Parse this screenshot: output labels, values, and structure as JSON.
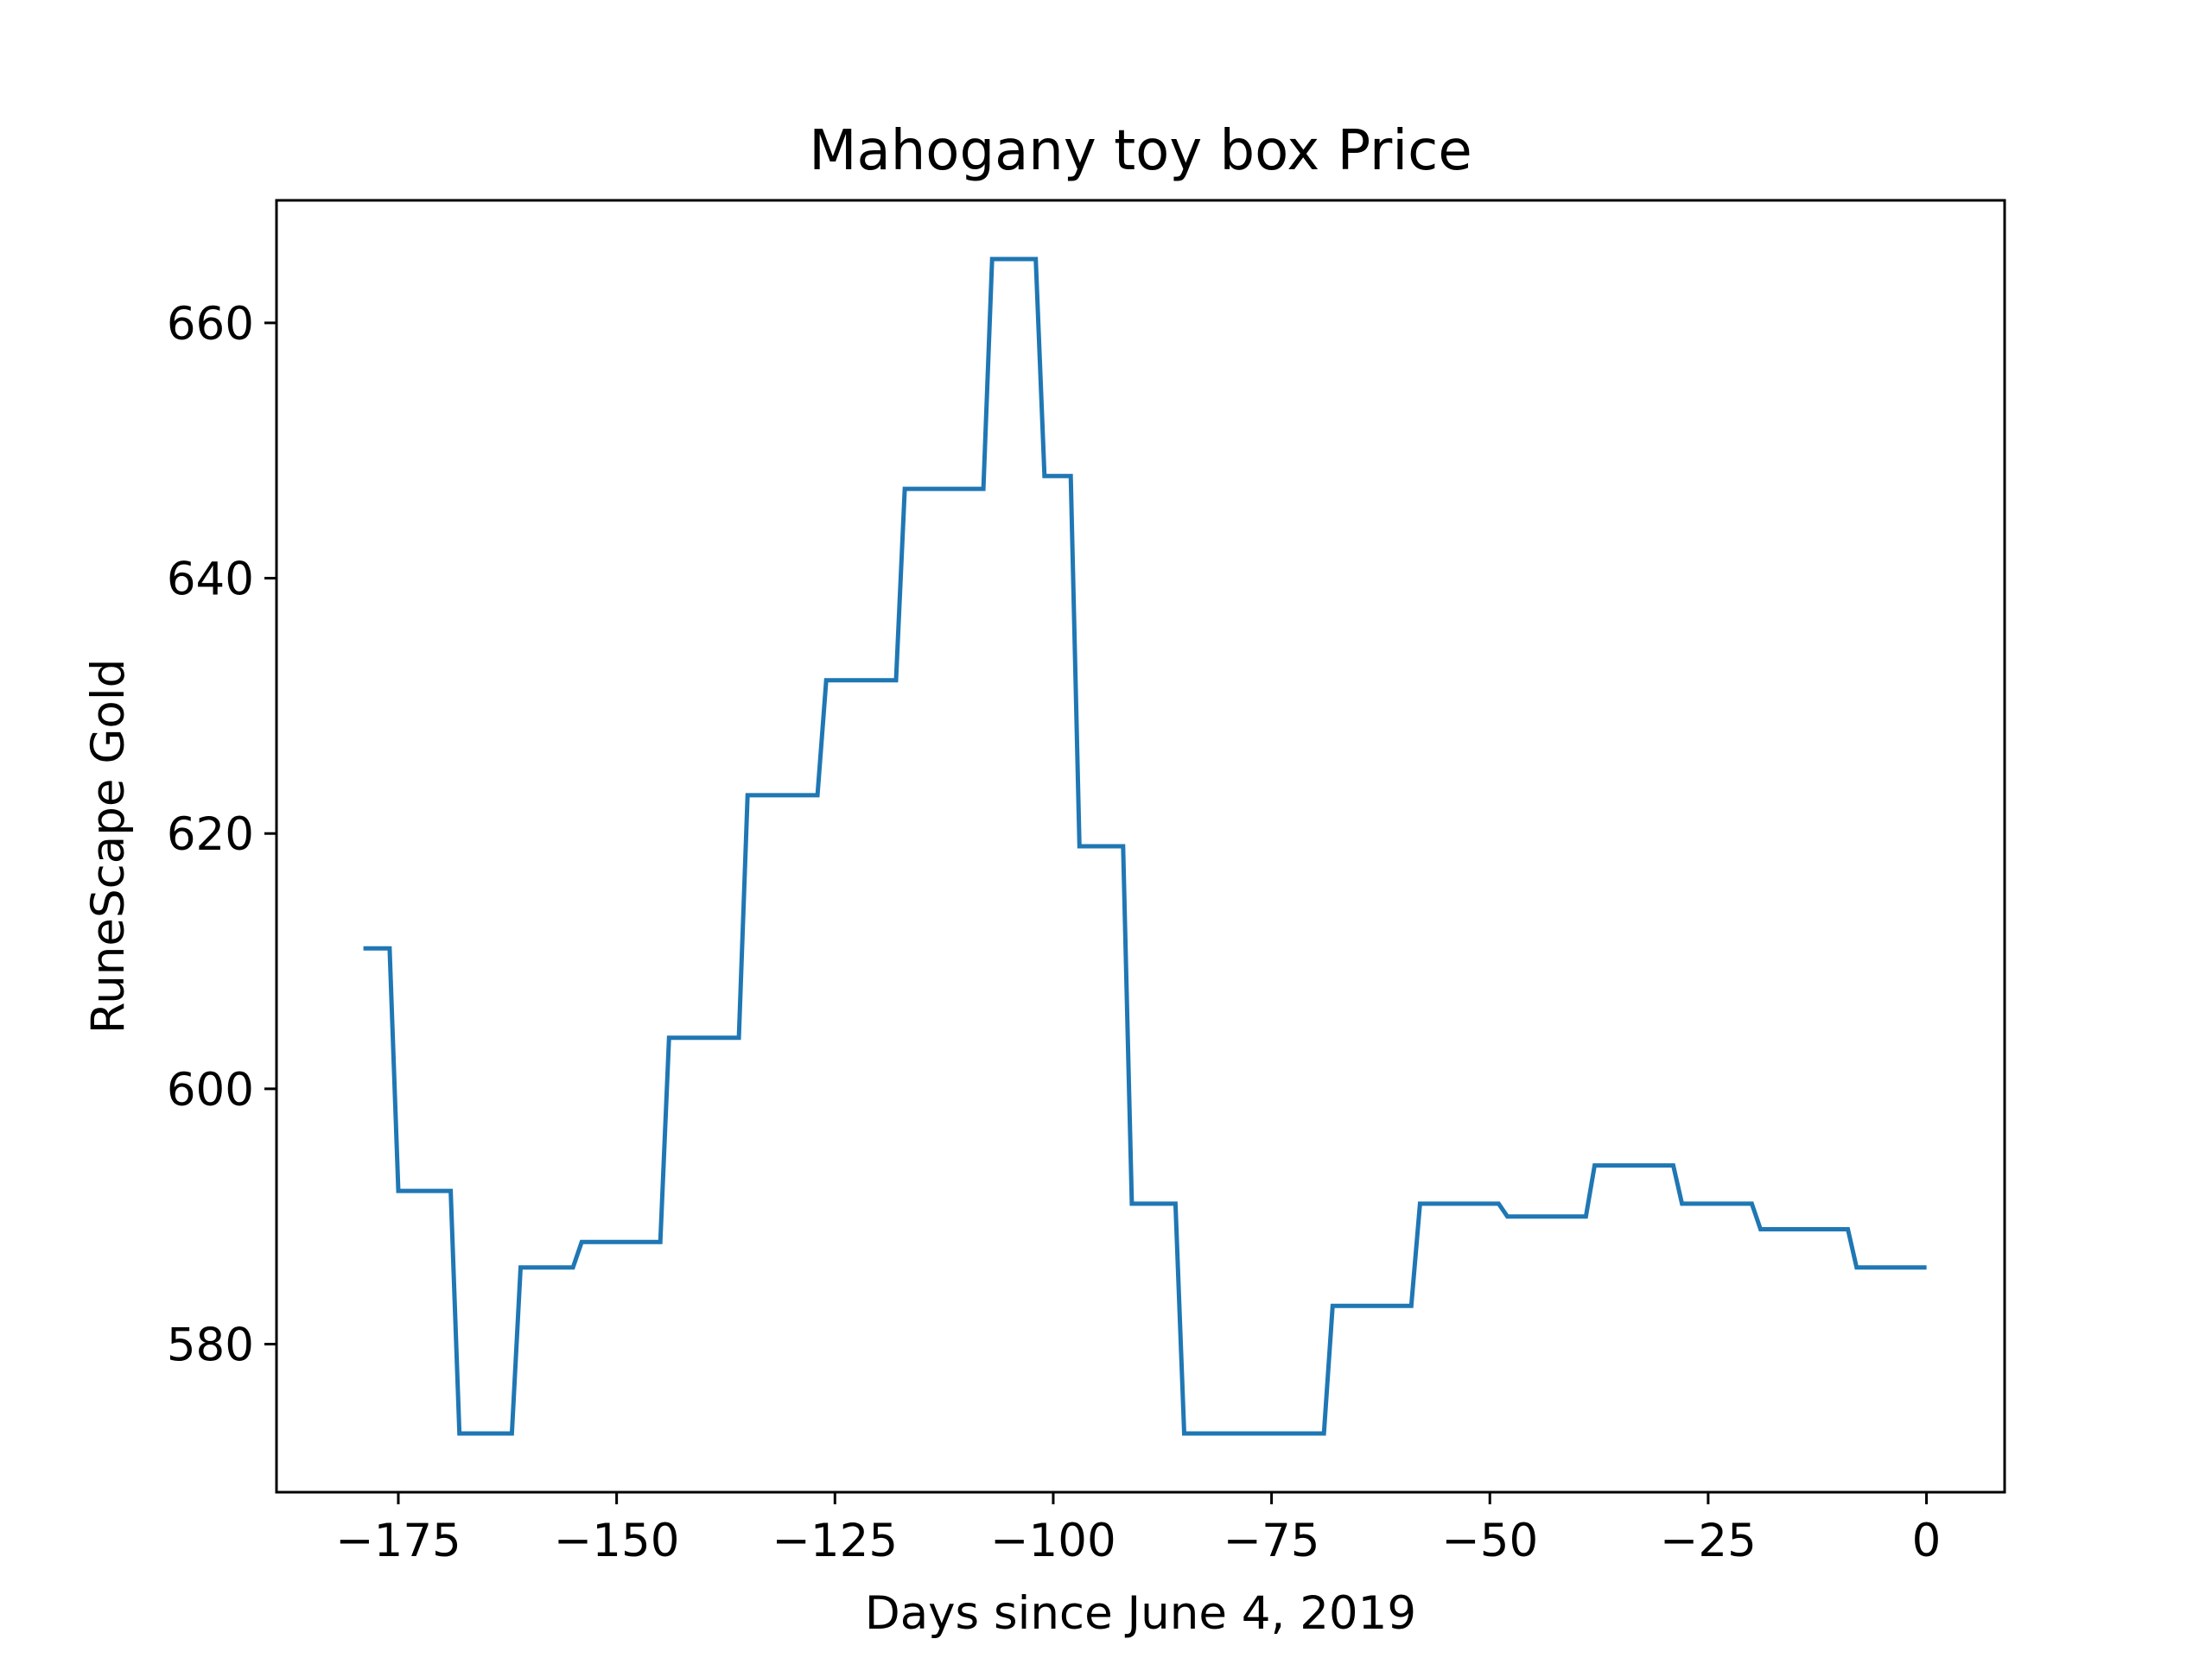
{
  "chart_data": {
    "type": "line",
    "title": "Mahogany toy box Price",
    "xlabel": "Days since June 4, 2019",
    "ylabel": "RuneScape Gold",
    "xlim": [
      -188.95,
      8.95
    ],
    "ylim": [
      568.4,
      669.6
    ],
    "x_ticks": [
      -175,
      -150,
      -125,
      -100,
      -75,
      -50,
      -25,
      0
    ],
    "x_tick_labels": [
      "−175",
      "−150",
      "−125",
      "−100",
      "−75",
      "−50",
      "−25",
      "0"
    ],
    "y_ticks": [
      580,
      600,
      620,
      640,
      660
    ],
    "y_tick_labels": [
      "580",
      "600",
      "620",
      "640",
      "660"
    ],
    "grid": false,
    "legend": "none",
    "line_color": "#1f77b4",
    "series": [
      {
        "x": [
          -179,
          -176,
          -175,
          -169,
          -168,
          -162,
          -161,
          -155,
          -154,
          -145,
          -144,
          -136,
          -135,
          -127,
          -126,
          -118,
          -117,
          -108,
          -107,
          -102,
          -101,
          -100,
          -99,
          -98,
          -97,
          -92,
          -91,
          -86,
          -85,
          -69,
          -68,
          -59,
          -58,
          -49,
          -48,
          -39,
          -38,
          -29,
          -28,
          -20,
          -19,
          -9,
          -8,
          0
        ],
        "y": [
          611,
          611,
          592,
          592,
          573,
          573,
          586,
          586,
          588,
          588,
          604,
          604,
          623,
          623,
          632,
          632,
          647,
          647,
          665,
          665,
          648,
          648,
          648,
          648,
          619,
          619,
          591,
          591,
          573,
          573,
          583,
          583,
          591,
          591,
          590,
          590,
          594,
          594,
          591,
          591,
          589,
          589,
          586,
          586
        ]
      }
    ]
  }
}
